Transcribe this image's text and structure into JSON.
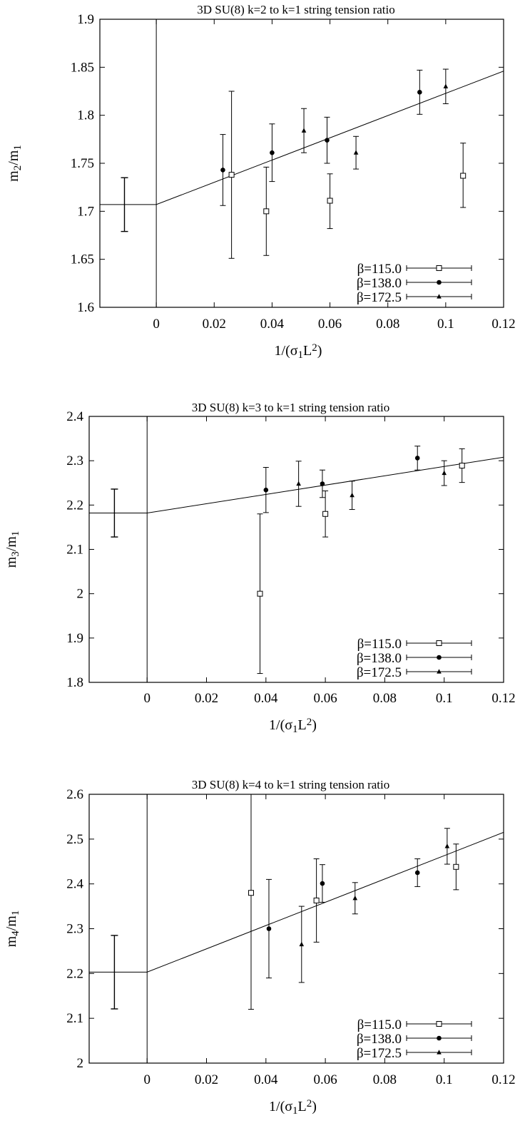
{
  "chart_data": [
    {
      "type": "scatter",
      "title": "3D SU(8) k=2 to k=1 string tension ratio",
      "xlabel": "1/(σ₁L²)",
      "ylabel": "m₂/m₁",
      "xlim": [
        -0.0195,
        0.12
      ],
      "ylim": [
        1.6,
        1.9
      ],
      "xticks": [
        "0",
        "0.02",
        "0.04",
        "0.06",
        "0.08",
        "0.1",
        "0.12"
      ],
      "yticks": [
        "1.6",
        "1.65",
        "1.7",
        "1.75",
        "1.8",
        "1.85",
        "1.9"
      ],
      "legend_position": "bottom-right",
      "series": [
        {
          "name": "β=115.0",
          "marker": "open-square",
          "points": [
            [
              0.026,
              1.738,
              1.651,
              1.825
            ],
            [
              0.038,
              1.7,
              1.654,
              1.746
            ],
            [
              0.06,
              1.711,
              1.682,
              1.739
            ],
            [
              0.106,
              1.737,
              1.704,
              1.771
            ]
          ]
        },
        {
          "name": "β=138.0",
          "marker": "filled-circle",
          "points": [
            [
              0.023,
              1.743,
              1.706,
              1.78
            ],
            [
              0.04,
              1.761,
              1.731,
              1.791
            ],
            [
              0.059,
              1.774,
              1.75,
              1.798
            ],
            [
              0.091,
              1.824,
              1.801,
              1.847
            ]
          ]
        },
        {
          "name": "β=172.5",
          "marker": "filled-triangle",
          "points": [
            [
              0.051,
              1.784,
              1.761,
              1.807
            ],
            [
              0.069,
              1.761,
              1.744,
              1.778
            ],
            [
              0.1,
              1.83,
              1.812,
              1.848
            ]
          ]
        }
      ],
      "extrapolation": {
        "x": -0.011,
        "y": 1.707,
        "ylow": 1.679,
        "yhigh": 1.735
      },
      "fit_line": [
        [
          -0.0195,
          1.707
        ],
        [
          0,
          1.707
        ],
        [
          0.12,
          1.846
        ]
      ]
    },
    {
      "type": "scatter",
      "title": "3D SU(8) k=3 to k=1 string tension ratio",
      "xlabel": "1/(σ₁L²)",
      "ylabel": "m₃/m₁",
      "xlim": [
        -0.0195,
        0.12
      ],
      "ylim": [
        1.8,
        2.4
      ],
      "xticks": [
        "0",
        "0.02",
        "0.04",
        "0.06",
        "0.08",
        "0.1",
        "0.12"
      ],
      "yticks": [
        "1.8",
        "1.9",
        "2",
        "2.1",
        "2.2",
        "2.3",
        "2.4"
      ],
      "legend_position": "bottom-right",
      "series": [
        {
          "name": "β=115.0",
          "marker": "open-square",
          "points": [
            [
              0.038,
              2.0,
              1.82,
              2.18
            ],
            [
              0.06,
              2.18,
              2.128,
              2.232
            ],
            [
              0.106,
              2.289,
              2.251,
              2.327
            ]
          ]
        },
        {
          "name": "β=138.0",
          "marker": "filled-circle",
          "points": [
            [
              0.04,
              2.234,
              2.183,
              2.285
            ],
            [
              0.059,
              2.248,
              2.217,
              2.279
            ],
            [
              0.091,
              2.306,
              2.279,
              2.333
            ]
          ]
        },
        {
          "name": "β=172.5",
          "marker": "filled-triangle",
          "points": [
            [
              0.051,
              2.248,
              2.197,
              2.299
            ],
            [
              0.069,
              2.222,
              2.19,
              2.254
            ],
            [
              0.1,
              2.272,
              2.244,
              2.3
            ]
          ]
        }
      ],
      "extrapolation": {
        "x": -0.011,
        "y": 2.182,
        "ylow": 2.128,
        "yhigh": 2.236
      },
      "fit_line": [
        [
          -0.0195,
          2.182
        ],
        [
          0,
          2.182
        ],
        [
          0.12,
          2.308
        ]
      ]
    },
    {
      "type": "scatter",
      "title": "3D SU(8) k=4 to k=1 string tension ratio",
      "xlabel": "1/(σ₁L²)",
      "ylabel": "m₄/m₁",
      "xlim": [
        -0.0195,
        0.12
      ],
      "ylim": [
        2.0,
        2.6
      ],
      "xticks": [
        "0",
        "0.02",
        "0.04",
        "0.06",
        "0.08",
        "0.1",
        "0.12"
      ],
      "yticks": [
        "2",
        "2.1",
        "2.2",
        "2.3",
        "2.4",
        "2.5",
        "2.6"
      ],
      "legend_position": "bottom-right",
      "series": [
        {
          "name": "β=115.0",
          "marker": "open-square",
          "points": [
            [
              0.035,
              2.38,
              2.12,
              2.64
            ],
            [
              0.057,
              2.363,
              2.27,
              2.456
            ],
            [
              0.104,
              2.438,
              2.387,
              2.489
            ]
          ]
        },
        {
          "name": "β=138.0",
          "marker": "filled-circle",
          "points": [
            [
              0.041,
              2.3,
              2.19,
              2.41
            ],
            [
              0.059,
              2.401,
              2.359,
              2.443
            ],
            [
              0.091,
              2.425,
              2.394,
              2.456
            ]
          ]
        },
        {
          "name": "β=172.5",
          "marker": "filled-triangle",
          "points": [
            [
              0.052,
              2.265,
              2.18,
              2.35
            ],
            [
              0.07,
              2.368,
              2.333,
              2.403
            ],
            [
              0.101,
              2.484,
              2.444,
              2.524
            ]
          ]
        }
      ],
      "extrapolation": {
        "x": -0.011,
        "y": 2.203,
        "ylow": 2.121,
        "yhigh": 2.285
      },
      "fit_line": [
        [
          -0.0195,
          2.203
        ],
        [
          0,
          2.203
        ],
        [
          0.12,
          2.515
        ]
      ]
    }
  ]
}
